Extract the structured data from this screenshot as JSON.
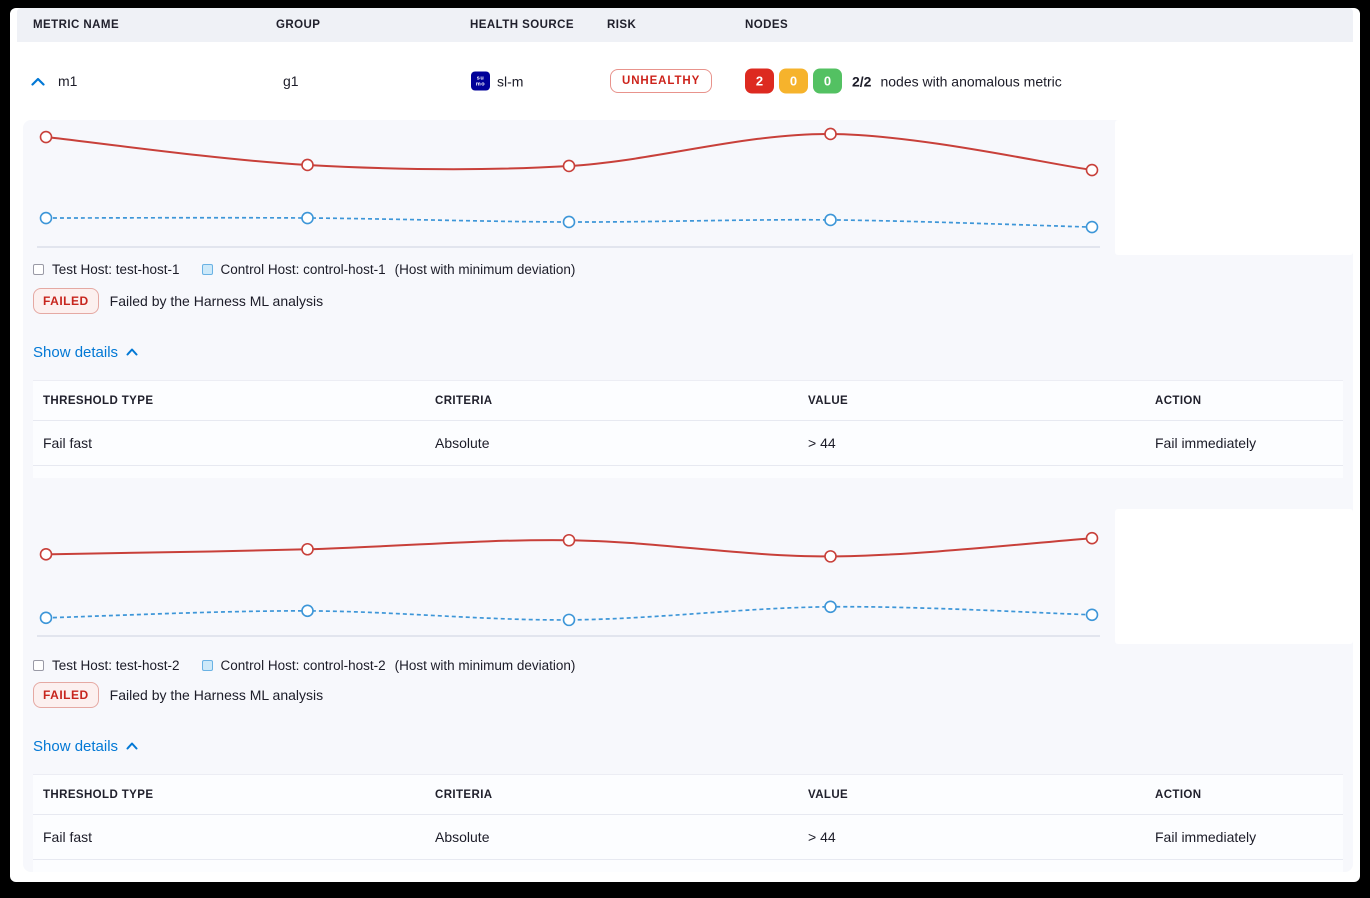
{
  "table_header": {
    "metric_name": "METRIC NAME",
    "group": "GROUP",
    "health_source": "HEALTH SOURCE",
    "risk": "RISK",
    "nodes": "NODES"
  },
  "metric_row": {
    "metric_name": "m1",
    "group": "g1",
    "health_source": {
      "icon": "sumo-logic-icon",
      "icon_text_top": "su",
      "icon_text_bottom": "mo",
      "label": "sl-m"
    },
    "risk_badge": "UNHEALTHY",
    "nodes": {
      "counts": [
        {
          "value": "2",
          "color": "#dd2a20",
          "status": "unhealthy"
        },
        {
          "value": "0",
          "color": "#f6b32c",
          "status": "warning"
        },
        {
          "value": "0",
          "color": "#53c162",
          "status": "healthy"
        }
      ],
      "ratio": "2/2",
      "caption": "nodes with anomalous metric"
    }
  },
  "blocks": [
    {
      "legend": {
        "test_host": "Test Host: test-host-1",
        "control_host": "Control Host: control-host-1",
        "note": "(Host with minimum deviation)"
      },
      "status": {
        "badge": "FAILED",
        "message": "Failed by the Harness ML analysis"
      },
      "details_toggle": "Show details",
      "table": {
        "headers": [
          "THRESHOLD TYPE",
          "CRITERIA",
          "VALUE",
          "ACTION"
        ],
        "rows": [
          [
            "Fail fast",
            "Absolute",
            "> 44",
            "Fail immediately"
          ]
        ]
      }
    },
    {
      "legend": {
        "test_host": "Test Host: test-host-2",
        "control_host": "Control Host: control-host-2",
        "note": "(Host with minimum deviation)"
      },
      "status": {
        "badge": "FAILED",
        "message": "Failed by the Harness ML analysis"
      },
      "details_toggle": "Show details",
      "table": {
        "headers": [
          "THRESHOLD TYPE",
          "CRITERIA",
          "VALUE",
          "ACTION"
        ],
        "rows": [
          [
            "Fail fast",
            "Absolute",
            "> 44",
            "Fail immediately"
          ]
        ]
      }
    }
  ],
  "chart_data": [
    {
      "type": "line",
      "title": "",
      "xlabel": "",
      "ylabel": "",
      "x": [
        1,
        2,
        3,
        4,
        5
      ],
      "axis_labels_visible": false,
      "units": "percent-of-plot-height (no axis tick labels shown in UI)",
      "ylim": [
        0,
        100
      ],
      "grid": false,
      "legend_position": "below-chart",
      "series": [
        {
          "name": "Test Host: test-host-1",
          "color": "#c8403a",
          "style": "solid",
          "marker": "hollow-circle",
          "values": [
            86.6,
            64.6,
            63.8,
            89.0,
            60.6
          ]
        },
        {
          "name": "Control Host: control-host-1",
          "color": "#3d96d8",
          "style": "dashed",
          "marker": "hollow-circle",
          "values": [
            22.8,
            22.8,
            19.7,
            21.3,
            15.7
          ]
        }
      ]
    },
    {
      "type": "line",
      "title": "",
      "xlabel": "",
      "ylabel": "",
      "x": [
        1,
        2,
        3,
        4,
        5
      ],
      "axis_labels_visible": false,
      "units": "percent-of-plot-height (no axis tick labels shown in UI)",
      "ylim": [
        0,
        100
      ],
      "grid": false,
      "legend_position": "below-chart",
      "series": [
        {
          "name": "Test Host: test-host-2",
          "color": "#c8403a",
          "style": "solid",
          "marker": "hollow-circle",
          "values": [
            64.3,
            68.3,
            75.4,
            62.7,
            77.0
          ]
        },
        {
          "name": "Control Host: control-host-2",
          "color": "#3d96d8",
          "style": "dashed",
          "marker": "hollow-circle",
          "values": [
            14.3,
            19.8,
            12.7,
            23.0,
            16.7
          ]
        }
      ]
    }
  ],
  "colors": {
    "accent_blue": "#0278d5",
    "risk_red": "#cd231b",
    "panel_bg": "#f7f8fc",
    "header_bg": "#eff1f6",
    "axis_line": "#ccd2e0"
  }
}
